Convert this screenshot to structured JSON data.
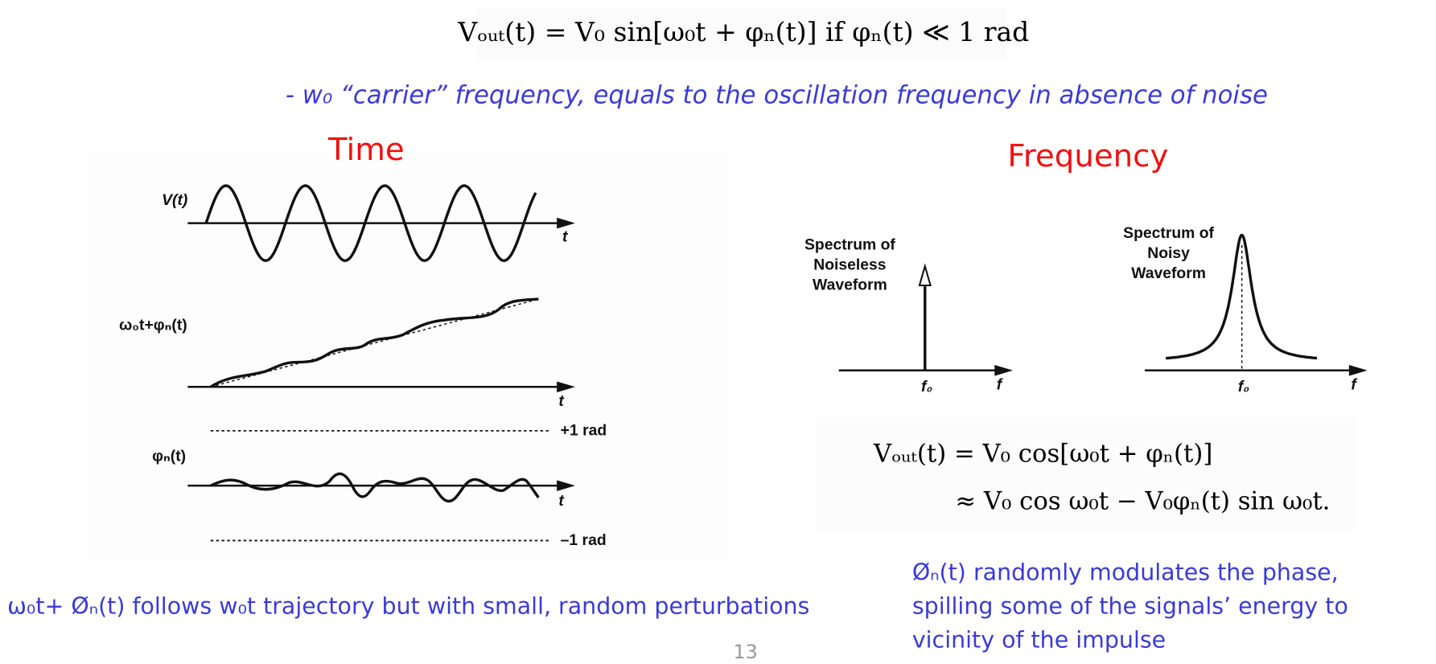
{
  "header": {
    "equation": "Vₒᵤₜ(t) = V₀ sin[ω₀t + φₙ(t)] if φₙ(t) ≪ 1 rad",
    "note": "- w₀ “carrier” frequency, equals to the oscillation frequency in absence of noise"
  },
  "time": {
    "title": "Time",
    "labels": [
      "V(t)",
      "t",
      "ω₀t+φₙ(t)",
      "t",
      "+1 rad",
      "φₙ(t)",
      "t",
      "–1 rad"
    ]
  },
  "frequency": {
    "title": "Frequency",
    "noiseless": {
      "title": [
        "Spectrum of",
        "Noiseless",
        "Waveform"
      ],
      "center": "f₀",
      "axis": "f"
    },
    "noisy": {
      "title": [
        "Spectrum of",
        "Noisy",
        "Waveform"
      ],
      "center": "f₀",
      "axis": "f"
    },
    "equations": [
      "Vₒᵤₜ(t) = V₀ cos[ω₀t + φₙ(t)]",
      "≈ V₀ cos ω₀t − V₀φₙ(t) sin ω₀t."
    ]
  },
  "captions": {
    "left": "ω₀t+ Øₙ(t)  follows w₀t trajectory but with small, random perturbations",
    "right": [
      "Øₙ(t) randomly modulates the phase,",
      "spilling some of the signals’ energy to",
      "vicinity of the impulse"
    ]
  },
  "page_number": "13"
}
